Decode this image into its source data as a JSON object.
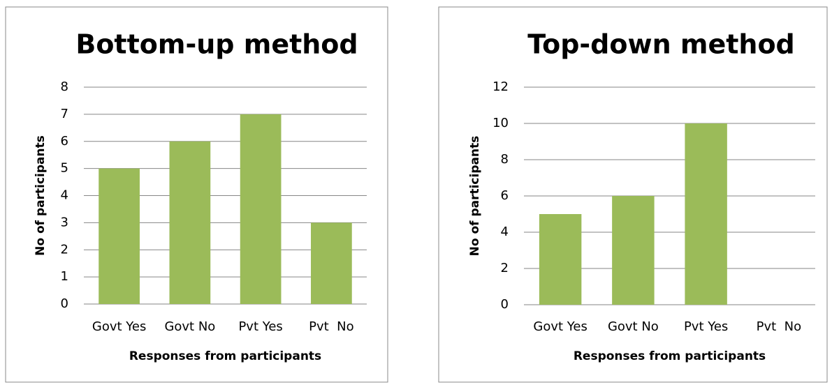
{
  "chart_data": [
    {
      "type": "bar",
      "title": "Bottom-up method",
      "x_label": "Responses from participants",
      "y_label": "No of participants",
      "categories": [
        "Govt Yes",
        "Govt No",
        "Pvt Yes",
        "Pvt  No"
      ],
      "values": [
        5,
        6,
        7,
        3
      ],
      "color": "#9bbb59",
      "ylim": [
        0,
        8
      ],
      "yticks": [
        0,
        1,
        2,
        3,
        4,
        5,
        6,
        7,
        8
      ],
      "grid": true
    },
    {
      "type": "bar",
      "title": "Top-down method",
      "x_label": "Responses from participants",
      "y_label": "No of participants",
      "categories": [
        "Govt Yes",
        "Govt No",
        "Pvt Yes",
        "Pvt  No"
      ],
      "values": [
        5,
        6,
        10,
        0
      ],
      "color": "#9bbb59",
      "ylim": [
        0,
        12
      ],
      "yticks": [
        0,
        2,
        4,
        6,
        8,
        10,
        12
      ],
      "grid": true
    }
  ]
}
